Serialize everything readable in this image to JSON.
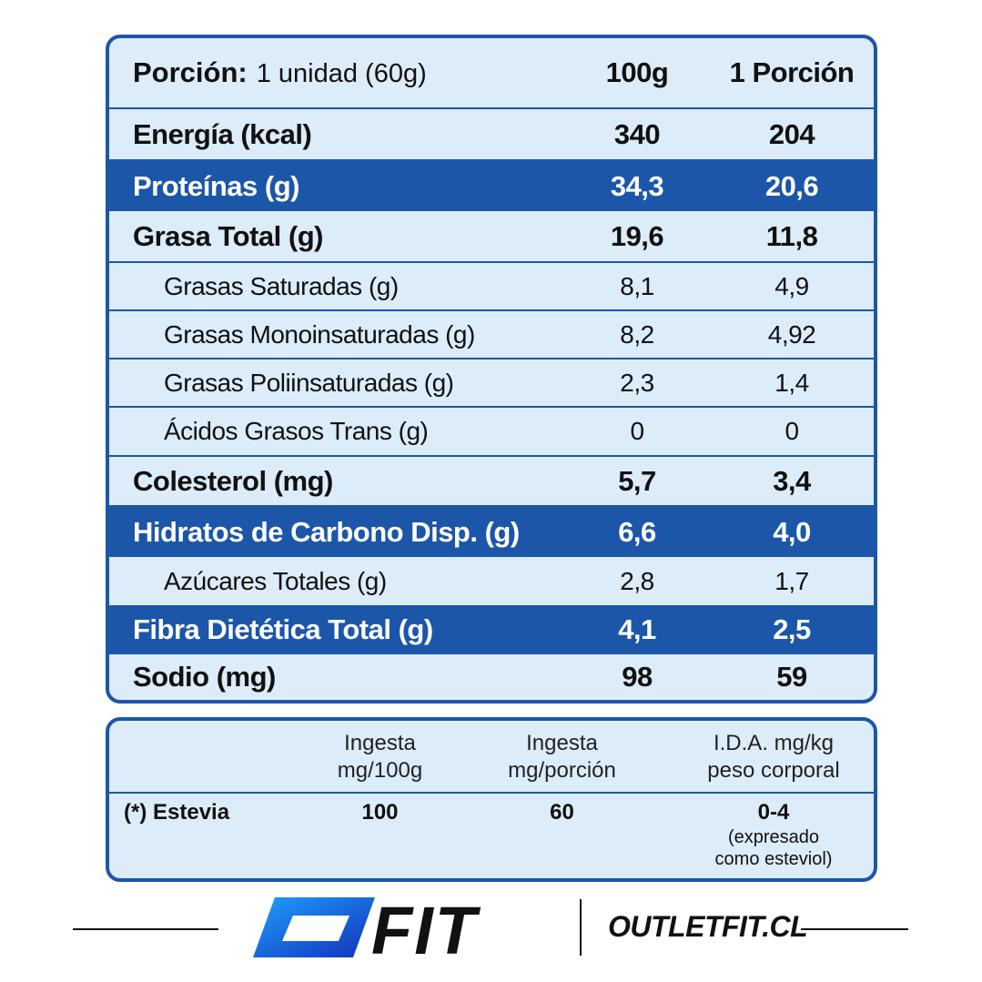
{
  "nutrition": {
    "header": {
      "label_key": "Porción:",
      "label_value": "1 unidad (60g)",
      "col1": "100g",
      "col2": "1 Porción"
    },
    "rows": [
      {
        "label": "Energía (kcal)",
        "v1": "340",
        "v2": "204"
      },
      {
        "label": "Proteínas (g)",
        "v1": "34,3",
        "v2": "20,6"
      },
      {
        "label": "Grasa Total (g)",
        "v1": "19,6",
        "v2": "11,8"
      },
      {
        "label": "Grasas Saturadas (g)",
        "v1": "8,1",
        "v2": "4,9"
      },
      {
        "label": "Grasas Monoinsaturadas (g)",
        "v1": "8,2",
        "v2": "4,92"
      },
      {
        "label": "Grasas Poliinsaturadas (g)",
        "v1": "2,3",
        "v2": "1,4"
      },
      {
        "label": "Ácidos Grasos Trans (g)",
        "v1": "0",
        "v2": "0"
      },
      {
        "label": "Colesterol (mg)",
        "v1": "5,7",
        "v2": "3,4"
      },
      {
        "label": "Hidratos de Carbono Disp. (g)",
        "v1": "6,6",
        "v2": "4,0"
      },
      {
        "label": "Azúcares Totales (g)",
        "v1": "2,8",
        "v2": "1,7"
      },
      {
        "label": "Fibra Dietética Total (g)",
        "v1": "4,1",
        "v2": "2,5"
      },
      {
        "label": "Sodio (mg)",
        "v1": "98",
        "v2": "59"
      }
    ]
  },
  "sweetener": {
    "headers": {
      "col2_l1": "Ingesta",
      "col2_l2": "mg/100g",
      "col3_l1": "Ingesta",
      "col3_l2": "mg/porción",
      "col4_l1": "I.D.A. mg/kg",
      "col4_l2": "peso corporal"
    },
    "row": {
      "name": "(*) Estevia",
      "v1": "100",
      "v2": "60",
      "v3": "0-4",
      "note_l1": "(expresado",
      "note_l2": "como esteviol)"
    }
  },
  "footer": {
    "brand": "FIT",
    "site": "OUTLETFIT.CL"
  },
  "colors": {
    "accent": "#1c56a9",
    "panel_bg": "#dcecf9"
  }
}
